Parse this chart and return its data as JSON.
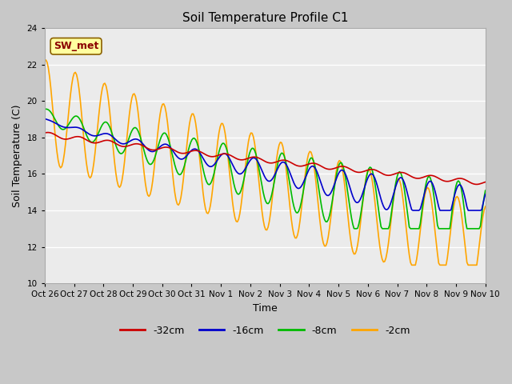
{
  "title": "Soil Temperature Profile C1",
  "xlabel": "Time",
  "ylabel": "Soil Temperature (C)",
  "ylim": [
    10,
    24
  ],
  "yticks": [
    10,
    12,
    14,
    16,
    18,
    20,
    22,
    24
  ],
  "annotation_text": "SW_met",
  "annotation_color": "#8B0000",
  "annotation_bg": "#FFFFA0",
  "annotation_edge": "#8B6000",
  "fig_bg": "#C8C8C8",
  "plot_bg": "#EBEBEB",
  "grid_color": "#FFFFFF",
  "x_tick_labels": [
    "Oct 26",
    "Oct 27",
    "Oct 28",
    "Oct 29",
    "Oct 30",
    "Oct 31",
    "Nov 1",
    "Nov 2",
    "Nov 3",
    "Nov 4",
    "Nov 5",
    "Nov 6",
    "Nov 7",
    "Nov 8",
    "Nov 9",
    "Nov 10"
  ],
  "series": {
    "-32cm": {
      "color": "#CC0000",
      "linewidth": 1.2
    },
    "-16cm": {
      "color": "#0000CC",
      "linewidth": 1.2
    },
    "-8cm": {
      "color": "#00BB00",
      "linewidth": 1.2
    },
    "-2cm": {
      "color": "#FFA500",
      "linewidth": 1.2
    }
  },
  "legend_labels": [
    "-32cm",
    "-16cm",
    "-8cm",
    "-2cm"
  ]
}
